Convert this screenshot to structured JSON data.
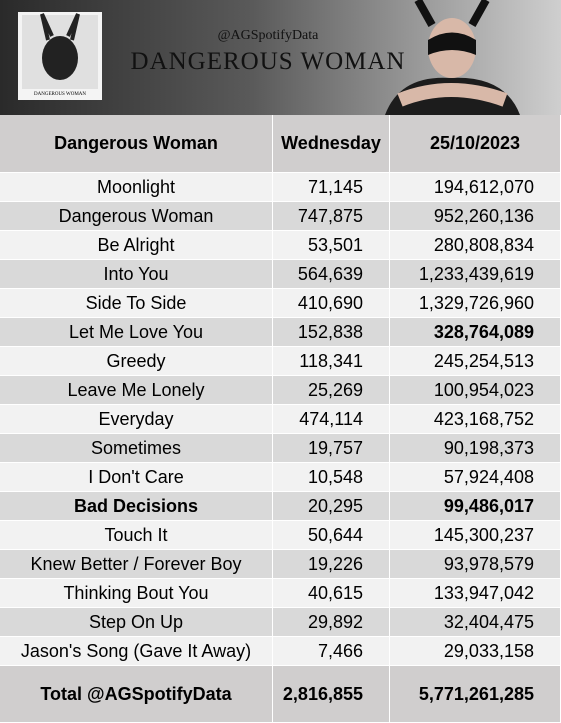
{
  "banner": {
    "handle": "@AGSpotifyData",
    "title": "DANGEROUS WOMAN",
    "cover_title": "DANGEROUS WOMAN"
  },
  "table": {
    "header": [
      "Dangerous Woman",
      "Wednesday",
      "25/10/2023"
    ],
    "rows": [
      [
        "Moonlight",
        "71,145",
        "194,612,070"
      ],
      [
        "Dangerous Woman",
        "747,875",
        "952,260,136"
      ],
      [
        "Be Alright",
        "53,501",
        "280,808,834"
      ],
      [
        "Into You",
        "564,639",
        "1,233,439,619"
      ],
      [
        "Side To Side",
        "410,690",
        "1,329,726,960"
      ],
      [
        "Let Me Love You",
        "152,838",
        "328,764,089"
      ],
      [
        "Greedy",
        "118,341",
        "245,254,513"
      ],
      [
        "Leave Me Lonely",
        "25,269",
        "100,954,023"
      ],
      [
        "Everyday",
        "474,114",
        "423,168,752"
      ],
      [
        "Sometimes",
        "19,757",
        "90,198,373"
      ],
      [
        "I Don't Care",
        "10,548",
        "57,924,408"
      ],
      [
        "Bad Decisions",
        "20,295",
        "99,486,017"
      ],
      [
        "Touch It",
        "50,644",
        "145,300,237"
      ],
      [
        "Knew Better / Forever Boy",
        "19,226",
        "93,978,579"
      ],
      [
        "Thinking Bout You",
        "40,615",
        "133,947,042"
      ],
      [
        "Step On Up",
        "29,892",
        "32,404,475"
      ],
      [
        "Jason's Song (Gave It Away)",
        "7,466",
        "29,033,158"
      ]
    ],
    "bold_cells": [
      [
        5,
        2
      ],
      [
        11,
        0
      ],
      [
        11,
        2
      ]
    ],
    "total": [
      "Total @AGSpotifyData",
      "2,816,855",
      "5,771,261,285"
    ]
  }
}
